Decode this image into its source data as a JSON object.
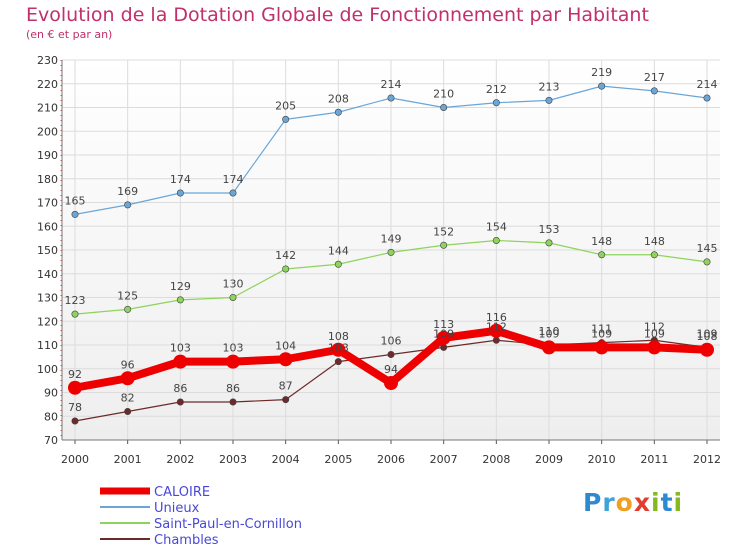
{
  "chart_data": {
    "type": "line",
    "title": "Evolution de la Dotation Globale de Fonctionnement par Habitant",
    "subtitle": "(en € et par an)",
    "x": [
      "2000",
      "2001",
      "2002",
      "2003",
      "2004",
      "2005",
      "2006",
      "2007",
      "2008",
      "2009",
      "2010",
      "2011",
      "2012"
    ],
    "ylim": [
      70,
      230
    ],
    "yticks": [
      70,
      80,
      90,
      100,
      110,
      120,
      130,
      140,
      150,
      160,
      170,
      180,
      190,
      200,
      210,
      220,
      230
    ],
    "grid": true,
    "legend_position": "bottom-left",
    "series": [
      {
        "name": "CALOIRE",
        "color": "#ee0000",
        "values": [
          92,
          96,
          103,
          103,
          104,
          108,
          94,
          113,
          116,
          109,
          109,
          109,
          108
        ]
      },
      {
        "name": "Unieux",
        "color": "#6aa6d8",
        "values": [
          165,
          169,
          174,
          174,
          205,
          208,
          214,
          210,
          212,
          213,
          219,
          217,
          214
        ]
      },
      {
        "name": "Saint-Paul-en-Cornillon",
        "color": "#8ed35c",
        "values": [
          123,
          125,
          129,
          130,
          142,
          144,
          149,
          152,
          154,
          153,
          148,
          148,
          145
        ]
      },
      {
        "name": "Chambles",
        "color": "#6e2a2a",
        "values": [
          78,
          82,
          86,
          86,
          87,
          103,
          106,
          109,
          112,
          110,
          111,
          112,
          109
        ]
      }
    ]
  },
  "logo": {
    "letters": [
      "P",
      "r",
      "o",
      "x",
      "i",
      "t",
      "i"
    ]
  }
}
